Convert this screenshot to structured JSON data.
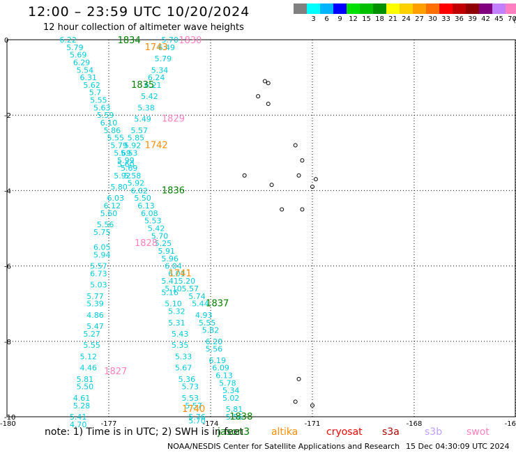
{
  "header": {
    "title": "12:00 – 23:59 UTC 10/20/2024",
    "subtitle": "12 hour collection of altimeter wave heights"
  },
  "scale": {
    "unit_label": "(ft)",
    "colors": [
      "#808080",
      "#00ffff",
      "#00b4ff",
      "#0000ff",
      "#00e000",
      "#00c000",
      "#009000",
      "#ffff00",
      "#ffd000",
      "#ffa000",
      "#ff7000",
      "#ff0000",
      "#c00000",
      "#900000",
      "#800080",
      "#c080ff",
      "#ff80c0",
      "#000000"
    ],
    "labels": [
      "3",
      "6",
      "9",
      "12",
      "15",
      "18",
      "21",
      "24",
      "27",
      "30",
      "33",
      "36",
      "39",
      "42",
      "45",
      "70"
    ]
  },
  "map": {
    "y_ticks": [
      "0",
      "-2",
      "-4",
      "-6",
      "-8",
      "-10"
    ],
    "x_ticks": [
      "-180",
      "-177",
      "-174",
      "-171",
      "-168",
      "-16"
    ]
  },
  "chart_data": {
    "type": "scatter",
    "xlim": [
      -180,
      -165
    ],
    "ylim": [
      -10,
      0
    ],
    "grid": true,
    "passes": [
      {
        "label": "1834",
        "color": "#008000",
        "lon": -176.4,
        "lat": -0.02
      },
      {
        "label": "1743",
        "color": "#ff8c00",
        "lon": -175.6,
        "lat": -0.2
      },
      {
        "label": "1830",
        "color": "#ff80c0",
        "lon": -174.6,
        "lat": -0.02
      },
      {
        "label": "1835",
        "color": "#008000",
        "lon": -176.0,
        "lat": -1.2
      },
      {
        "label": "1829",
        "color": "#ff80c0",
        "lon": -175.1,
        "lat": -2.1
      },
      {
        "label": "1742",
        "color": "#ff8c00",
        "lon": -175.6,
        "lat": -2.8
      },
      {
        "label": "1836",
        "color": "#008000",
        "lon": -175.1,
        "lat": -4.0
      },
      {
        "label": "1828",
        "color": "#ff80c0",
        "lon": -175.9,
        "lat": -5.4
      },
      {
        "label": "1741",
        "color": "#ff8c00",
        "lon": -174.9,
        "lat": -6.2
      },
      {
        "label": "1837",
        "color": "#008000",
        "lon": -173.8,
        "lat": -7.0
      },
      {
        "label": "1827",
        "color": "#ff80c0",
        "lon": -176.8,
        "lat": -8.8
      },
      {
        "label": "1740",
        "color": "#ff8c00",
        "lon": -174.5,
        "lat": -9.8
      },
      {
        "label": "1838",
        "color": "#008000",
        "lon": -173.1,
        "lat": -10.0
      }
    ],
    "tracks": [
      {
        "name": "",
        "points": [
          {
            "lon": -178.2,
            "lat": 0.0,
            "v": "6.22"
          },
          {
            "lon": -178.0,
            "lat": -0.2,
            "v": "5.79"
          },
          {
            "lon": -177.9,
            "lat": -0.4,
            "v": "5.69"
          },
          {
            "lon": -177.8,
            "lat": -0.6,
            "v": "6.29"
          },
          {
            "lon": -177.7,
            "lat": -0.8,
            "v": "5.54"
          },
          {
            "lon": -177.6,
            "lat": -1.0,
            "v": "6.31"
          },
          {
            "lon": -177.5,
            "lat": -1.2,
            "v": "5.62"
          },
          {
            "lon": -177.4,
            "lat": -1.4,
            "v": "5.7"
          },
          {
            "lon": -177.3,
            "lat": -1.6,
            "v": "5.55"
          },
          {
            "lon": -177.2,
            "lat": -1.8,
            "v": "5.63"
          },
          {
            "lon": -177.1,
            "lat": -2.0,
            "v": "5.59"
          },
          {
            "lon": -177.0,
            "lat": -2.2,
            "v": "6.10"
          },
          {
            "lon": -176.9,
            "lat": -2.4,
            "v": "5.86"
          },
          {
            "lon": -176.8,
            "lat": -2.6,
            "v": "5.55"
          },
          {
            "lon": -176.7,
            "lat": -2.8,
            "v": "5.79"
          },
          {
            "lon": -176.6,
            "lat": -3.0,
            "v": "5.69"
          },
          {
            "lon": -176.5,
            "lat": -3.2,
            "v": "5.99"
          },
          {
            "lon": -176.4,
            "lat": -3.4,
            "v": "5.69"
          },
          {
            "lon": -176.3,
            "lat": -3.6,
            "v": "5.58"
          },
          {
            "lon": -176.2,
            "lat": -3.8,
            "v": "5.92"
          },
          {
            "lon": -176.1,
            "lat": -4.0,
            "v": "6.02"
          },
          {
            "lon": -176.0,
            "lat": -4.2,
            "v": "5.50"
          },
          {
            "lon": -175.9,
            "lat": -4.4,
            "v": "6.13"
          },
          {
            "lon": -175.8,
            "lat": -4.6,
            "v": "6.08"
          },
          {
            "lon": -175.7,
            "lat": -4.8,
            "v": "5.53"
          },
          {
            "lon": -175.6,
            "lat": -5.0,
            "v": "5.42"
          },
          {
            "lon": -175.5,
            "lat": -5.2,
            "v": "5.70"
          },
          {
            "lon": -175.4,
            "lat": -5.4,
            "v": "5.25"
          },
          {
            "lon": -175.3,
            "lat": -5.6,
            "v": "5.91"
          },
          {
            "lon": -175.2,
            "lat": -5.8,
            "v": "5.96"
          },
          {
            "lon": -175.1,
            "lat": -6.0,
            "v": "6.04"
          },
          {
            "lon": -175.0,
            "lat": -6.2,
            "v": "6.01"
          }
        ]
      },
      {
        "name": "",
        "points": [
          {
            "lon": -175.2,
            "lat": 0.0,
            "v": "5.70"
          },
          {
            "lon": -175.3,
            "lat": -0.2,
            "v": "6.49"
          },
          {
            "lon": -175.4,
            "lat": -0.5,
            "v": "5.79"
          },
          {
            "lon": -175.5,
            "lat": -0.8,
            "v": "5.34"
          },
          {
            "lon": -175.6,
            "lat": -1.0,
            "v": "6.24"
          },
          {
            "lon": -175.7,
            "lat": -1.2,
            "v": "6.21"
          },
          {
            "lon": -175.8,
            "lat": -1.5,
            "v": "5.42"
          },
          {
            "lon": -175.9,
            "lat": -1.8,
            "v": "5.38"
          },
          {
            "lon": -176.0,
            "lat": -2.1,
            "v": "5.49"
          },
          {
            "lon": -176.1,
            "lat": -2.4,
            "v": "5.57"
          },
          {
            "lon": -176.2,
            "lat": -2.6,
            "v": "5.85"
          },
          {
            "lon": -176.3,
            "lat": -2.8,
            "v": "5.92"
          },
          {
            "lon": -176.4,
            "lat": -3.0,
            "v": "5.53"
          },
          {
            "lon": -176.5,
            "lat": -3.3,
            "v": "5.60"
          },
          {
            "lon": -176.6,
            "lat": -3.6,
            "v": "5.92"
          },
          {
            "lon": -176.7,
            "lat": -3.9,
            "v": "5.80"
          },
          {
            "lon": -176.8,
            "lat": -4.2,
            "v": "6.03"
          },
          {
            "lon": -176.9,
            "lat": -4.4,
            "v": "6.12"
          },
          {
            "lon": -177.0,
            "lat": -4.6,
            "v": "5.60"
          },
          {
            "lon": -177.1,
            "lat": -4.9,
            "v": "5.56"
          },
          {
            "lon": -177.2,
            "lat": -5.1,
            "v": "5.75"
          },
          {
            "lon": -177.2,
            "lat": -5.5,
            "v": "6.05"
          },
          {
            "lon": -177.2,
            "lat": -5.7,
            "v": "5.94"
          },
          {
            "lon": -177.3,
            "lat": -6.0,
            "v": "5.57"
          },
          {
            "lon": -177.3,
            "lat": -6.2,
            "v": "6.73"
          },
          {
            "lon": -177.3,
            "lat": -6.5,
            "v": "5.03"
          },
          {
            "lon": -177.4,
            "lat": -6.8,
            "v": "5.77"
          },
          {
            "lon": -177.4,
            "lat": -7.0,
            "v": "5.39"
          },
          {
            "lon": -177.4,
            "lat": -7.3,
            "v": "4.86"
          },
          {
            "lon": -177.4,
            "lat": -7.6,
            "v": "5.47"
          },
          {
            "lon": -177.5,
            "lat": -7.8,
            "v": "5.27"
          },
          {
            "lon": -177.5,
            "lat": -8.1,
            "v": "5.55"
          },
          {
            "lon": -177.6,
            "lat": -8.4,
            "v": "5.12"
          },
          {
            "lon": -177.6,
            "lat": -8.7,
            "v": "4.46"
          },
          {
            "lon": -177.7,
            "lat": -9.0,
            "v": "5.81"
          },
          {
            "lon": -177.7,
            "lat": -9.2,
            "v": "5.50"
          },
          {
            "lon": -177.8,
            "lat": -9.5,
            "v": "4.61"
          },
          {
            "lon": -177.8,
            "lat": -9.7,
            "v": "5.28"
          },
          {
            "lon": -177.9,
            "lat": -10.0,
            "v": "5.41"
          },
          {
            "lon": -177.9,
            "lat": -10.2,
            "v": "4.70"
          }
        ]
      },
      {
        "name": "",
        "points": [
          {
            "lon": -175.2,
            "lat": -6.4,
            "v": "5.41"
          },
          {
            "lon": -175.1,
            "lat": -6.6,
            "v": "5.10"
          },
          {
            "lon": -175.2,
            "lat": -6.7,
            "v": "5.16"
          },
          {
            "lon": -175.1,
            "lat": -7.0,
            "v": "5.10"
          },
          {
            "lon": -175.0,
            "lat": -7.2,
            "v": "5.32"
          },
          {
            "lon": -175.0,
            "lat": -7.5,
            "v": "5.31"
          },
          {
            "lon": -174.9,
            "lat": -7.8,
            "v": "5.43"
          },
          {
            "lon": -174.9,
            "lat": -8.1,
            "v": "5.35"
          },
          {
            "lon": -174.8,
            "lat": -8.4,
            "v": "5.33"
          },
          {
            "lon": -174.8,
            "lat": -8.7,
            "v": "5.67"
          },
          {
            "lon": -174.7,
            "lat": -9.0,
            "v": "5.36"
          },
          {
            "lon": -174.6,
            "lat": -9.2,
            "v": "5.73"
          },
          {
            "lon": -174.6,
            "lat": -9.5,
            "v": "5.53"
          },
          {
            "lon": -174.5,
            "lat": -9.7,
            "v": "5.57"
          },
          {
            "lon": -174.4,
            "lat": -10.0,
            "v": "5.76"
          },
          {
            "lon": -174.4,
            "lat": -10.1,
            "v": "5.70"
          }
        ]
      },
      {
        "name": "",
        "points": [
          {
            "lon": -174.7,
            "lat": -6.4,
            "v": "5.20"
          },
          {
            "lon": -174.6,
            "lat": -6.6,
            "v": "5.57"
          },
          {
            "lon": -174.4,
            "lat": -6.8,
            "v": "5.74"
          },
          {
            "lon": -174.3,
            "lat": -7.0,
            "v": "5.44"
          },
          {
            "lon": -174.2,
            "lat": -7.3,
            "v": "4.93"
          },
          {
            "lon": -174.1,
            "lat": -7.5,
            "v": "5.55"
          },
          {
            "lon": -174.0,
            "lat": -7.7,
            "v": "5.82"
          },
          {
            "lon": -173.9,
            "lat": -8.0,
            "v": "6.20"
          },
          {
            "lon": -173.9,
            "lat": -8.2,
            "v": "5.56"
          },
          {
            "lon": -173.8,
            "lat": -8.5,
            "v": "6.19"
          },
          {
            "lon": -173.7,
            "lat": -8.7,
            "v": "6.09"
          },
          {
            "lon": -173.6,
            "lat": -8.9,
            "v": "6.13"
          },
          {
            "lon": -173.5,
            "lat": -9.1,
            "v": "5.78"
          },
          {
            "lon": -173.4,
            "lat": -9.3,
            "v": "5.34"
          },
          {
            "lon": -173.4,
            "lat": -9.5,
            "v": "5.02"
          },
          {
            "lon": -173.3,
            "lat": -9.8,
            "v": "5.81"
          },
          {
            "lon": -173.3,
            "lat": -10.0,
            "v": "5.56"
          }
        ]
      }
    ],
    "islands": [
      {
        "lon": -172.3,
        "lat": -1.15
      },
      {
        "lon": -172.4,
        "lat": -1.1
      },
      {
        "lon": -172.6,
        "lat": -1.5
      },
      {
        "lon": -172.3,
        "lat": -1.7
      },
      {
        "lon": -171.5,
        "lat": -2.8
      },
      {
        "lon": -171.3,
        "lat": -3.2
      },
      {
        "lon": -171.4,
        "lat": -3.6
      },
      {
        "lon": -170.9,
        "lat": -3.7
      },
      {
        "lon": -171.0,
        "lat": -3.9
      },
      {
        "lon": -173.0,
        "lat": -3.6
      },
      {
        "lon": -172.2,
        "lat": -3.85
      },
      {
        "lon": -171.3,
        "lat": -4.5
      },
      {
        "lon": -171.9,
        "lat": -4.5
      },
      {
        "lon": -171.4,
        "lat": -9.0
      },
      {
        "lon": -171.5,
        "lat": -9.6
      },
      {
        "lon": -171.0,
        "lat": -9.7
      }
    ]
  },
  "footer": {
    "note": "note:  1) Time is in UTC; 2) SWH is in feet",
    "legend": [
      {
        "label": "jason3",
        "color": "#008000"
      },
      {
        "label": "altika",
        "color": "#ff8c00"
      },
      {
        "label": "cryosat",
        "color": "#ff0000"
      },
      {
        "label": "s3a",
        "color": "#b00000"
      },
      {
        "label": "s3b",
        "color": "#c0a0ff"
      },
      {
        "label": "swot",
        "color": "#ff80c0"
      }
    ],
    "credit": "NOAA/NESDIS Center for Satellite Applications and Research",
    "stamp": "15 Dec 04:30:09 UTC 2024"
  }
}
